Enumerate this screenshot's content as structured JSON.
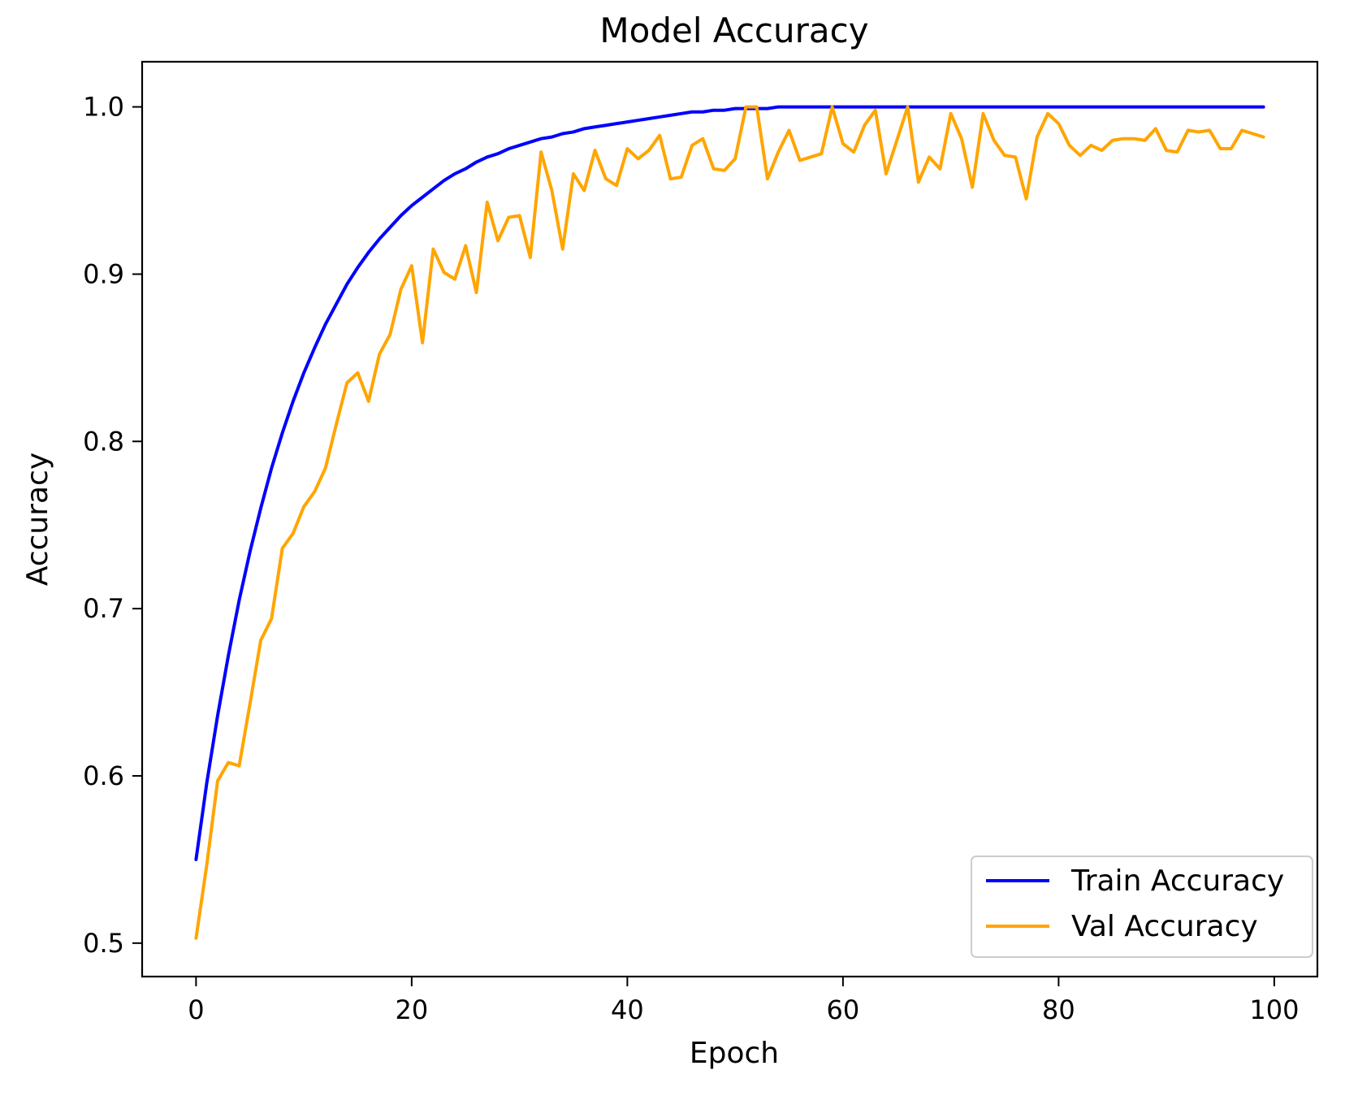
{
  "chart_data": {
    "type": "line",
    "title": "Model Accuracy",
    "xlabel": "Epoch",
    "ylabel": "Accuracy",
    "xlim": [
      -5,
      104
    ],
    "ylim": [
      0.48,
      1.027
    ],
    "xticks": [
      0,
      20,
      40,
      60,
      80,
      100
    ],
    "yticks": [
      0.5,
      0.6,
      0.7,
      0.8,
      0.9,
      1.0
    ],
    "xtick_labels": [
      "0",
      "20",
      "40",
      "60",
      "80",
      "100"
    ],
    "ytick_labels": [
      "0.5",
      "0.6",
      "0.7",
      "0.8",
      "0.9",
      "1.0"
    ],
    "grid": false,
    "legend_position": "bottom-right",
    "series": [
      {
        "name": "Train Accuracy",
        "color": "#0000ff",
        "x": [
          0,
          1,
          2,
          3,
          4,
          5,
          6,
          7,
          8,
          9,
          10,
          11,
          12,
          13,
          14,
          15,
          16,
          17,
          18,
          19,
          20,
          21,
          22,
          23,
          24,
          25,
          26,
          27,
          28,
          29,
          30,
          31,
          32,
          33,
          34,
          35,
          36,
          37,
          38,
          39,
          40,
          41,
          42,
          43,
          44,
          45,
          46,
          47,
          48,
          49,
          50,
          51,
          52,
          53,
          54,
          55,
          56,
          57,
          58,
          59,
          60,
          61,
          62,
          63,
          64,
          65,
          66,
          67,
          68,
          69,
          70,
          71,
          72,
          73,
          74,
          75,
          76,
          77,
          78,
          79,
          80,
          81,
          82,
          83,
          84,
          85,
          86,
          87,
          88,
          89,
          90,
          91,
          92,
          93,
          94,
          95,
          96,
          97,
          98,
          99
        ],
        "values": [
          0.55,
          0.596,
          0.636,
          0.672,
          0.705,
          0.734,
          0.76,
          0.784,
          0.805,
          0.824,
          0.841,
          0.856,
          0.87,
          0.882,
          0.894,
          0.904,
          0.913,
          0.921,
          0.928,
          0.935,
          0.941,
          0.946,
          0.951,
          0.956,
          0.96,
          0.963,
          0.967,
          0.97,
          0.972,
          0.975,
          0.977,
          0.979,
          0.981,
          0.982,
          0.984,
          0.985,
          0.987,
          0.988,
          0.989,
          0.99,
          0.991,
          0.992,
          0.993,
          0.994,
          0.995,
          0.996,
          0.997,
          0.997,
          0.998,
          0.998,
          0.999,
          0.999,
          0.999,
          0.999,
          1.0,
          1.0,
          1.0,
          1.0,
          1.0,
          1.0,
          1.0,
          1.0,
          1.0,
          1.0,
          1.0,
          1.0,
          1.0,
          1.0,
          1.0,
          1.0,
          1.0,
          1.0,
          1.0,
          1.0,
          1.0,
          1.0,
          1.0,
          1.0,
          1.0,
          1.0,
          1.0,
          1.0,
          1.0,
          1.0,
          1.0,
          1.0,
          1.0,
          1.0,
          1.0,
          1.0,
          1.0,
          1.0,
          1.0,
          1.0,
          1.0,
          1.0,
          1.0,
          1.0,
          1.0,
          1.0
        ]
      },
      {
        "name": "Val Accuracy",
        "color": "#ffa500",
        "x": [
          0,
          1,
          2,
          3,
          4,
          5,
          6,
          7,
          8,
          9,
          10,
          11,
          12,
          13,
          14,
          15,
          16,
          17,
          18,
          19,
          20,
          21,
          22,
          23,
          24,
          25,
          26,
          27,
          28,
          29,
          30,
          31,
          32,
          33,
          34,
          35,
          36,
          37,
          38,
          39,
          40,
          41,
          42,
          43,
          44,
          45,
          46,
          47,
          48,
          49,
          50,
          51,
          52,
          53,
          54,
          55,
          56,
          57,
          58,
          59,
          60,
          61,
          62,
          63,
          64,
          65,
          66,
          67,
          68,
          69,
          70,
          71,
          72,
          73,
          74,
          75,
          76,
          77,
          78,
          79,
          80,
          81,
          82,
          83,
          84,
          85,
          86,
          87,
          88,
          89,
          90,
          91,
          92,
          93,
          94,
          95,
          96,
          97,
          98,
          99
        ],
        "values": [
          0.503,
          0.547,
          0.597,
          0.608,
          0.606,
          0.643,
          0.681,
          0.694,
          0.736,
          0.745,
          0.761,
          0.77,
          0.784,
          0.81,
          0.835,
          0.841,
          0.824,
          0.852,
          0.864,
          0.891,
          0.905,
          0.859,
          0.915,
          0.901,
          0.897,
          0.917,
          0.889,
          0.943,
          0.92,
          0.934,
          0.935,
          0.91,
          0.973,
          0.95,
          0.915,
          0.96,
          0.95,
          0.974,
          0.957,
          0.953,
          0.975,
          0.969,
          0.974,
          0.983,
          0.957,
          0.958,
          0.977,
          0.981,
          0.963,
          0.962,
          0.969,
          1.0,
          1.0,
          0.957,
          0.973,
          0.986,
          0.968,
          0.97,
          0.972,
          1.0,
          0.978,
          0.973,
          0.989,
          0.998,
          0.96,
          0.98,
          1.0,
          0.955,
          0.97,
          0.963,
          0.996,
          0.981,
          0.952,
          0.996,
          0.98,
          0.971,
          0.97,
          0.945,
          0.982,
          0.996,
          0.99,
          0.977,
          0.971,
          0.977,
          0.974,
          0.98,
          0.981,
          0.981,
          0.98,
          0.987,
          0.974,
          0.973,
          0.986,
          0.985,
          0.986,
          0.975,
          0.975,
          0.986,
          0.984,
          0.982
        ]
      }
    ]
  }
}
